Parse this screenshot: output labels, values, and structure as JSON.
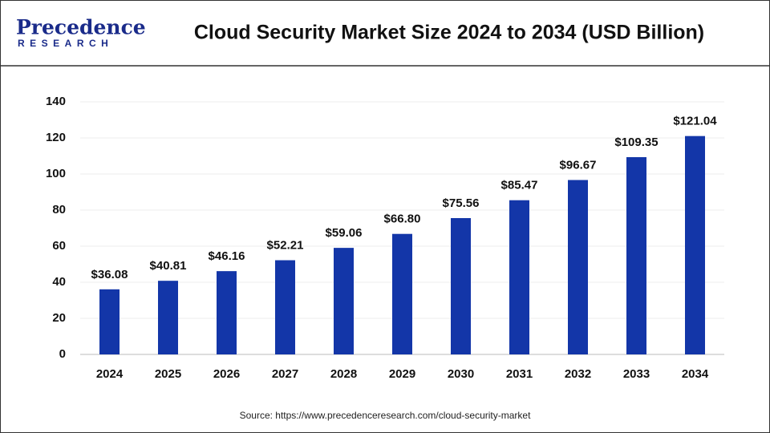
{
  "logo": {
    "name": "Precedence",
    "sub": "RESEARCH"
  },
  "chart_data": {
    "type": "bar",
    "title": "Cloud Security Market Size 2024 to 2034 (USD Billion)",
    "categories": [
      "2024",
      "2025",
      "2026",
      "2027",
      "2028",
      "2029",
      "2030",
      "2031",
      "2032",
      "2033",
      "2034"
    ],
    "values": [
      36.08,
      40.81,
      46.16,
      52.21,
      59.06,
      66.8,
      75.56,
      85.47,
      96.67,
      109.35,
      121.04
    ],
    "value_labels": [
      "$36.08",
      "$40.81",
      "$46.16",
      "$52.21",
      "$59.06",
      "$66.80",
      "$75.56",
      "$85.47",
      "$96.67",
      "$109.35",
      "$121.04"
    ],
    "color": "#1336a8",
    "ylim": [
      0,
      140
    ],
    "yticks": [
      0,
      20,
      40,
      60,
      80,
      100,
      120,
      140
    ],
    "grid": true,
    "source": "Source: https://www.precedenceresearch.com/cloud-security-market"
  }
}
